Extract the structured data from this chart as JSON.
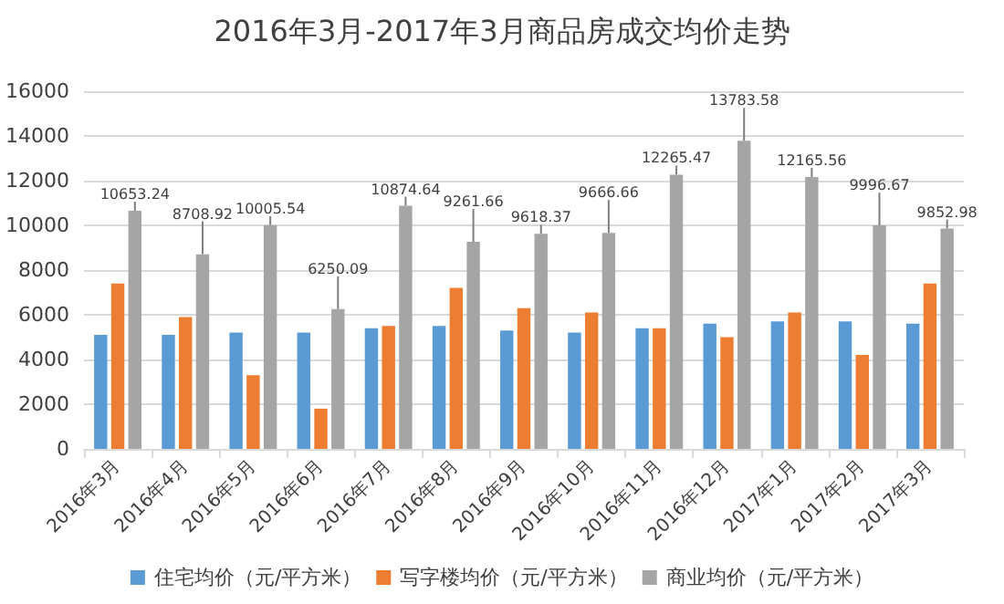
{
  "chart_data": {
    "type": "bar",
    "title": "2016年3月-2017年3月商品房成交均价走势",
    "categories": [
      "2016年3月",
      "2016年4月",
      "2016年5月",
      "2016年6月",
      "2016年7月",
      "2016年8月",
      "2016年9月",
      "2016年10月",
      "2016年11月",
      "2016年12月",
      "2017年1月",
      "2017年2月",
      "2017年3月"
    ],
    "series": [
      {
        "name": "住宅均价（元/平方米）",
        "color": "#5b9bd5",
        "values": [
          5100,
          5100,
          5200,
          5200,
          5400,
          5500,
          5300,
          5200,
          5400,
          5600,
          5700,
          5700,
          5600
        ]
      },
      {
        "name": "写字楼均价（元/平方米）",
        "color": "#ed7d31",
        "values": [
          7400,
          5900,
          3300,
          1800,
          5500,
          7200,
          6300,
          6100,
          5400,
          5000,
          6100,
          4200,
          7400
        ]
      },
      {
        "name": "商业均价（元/平方米）",
        "color": "#a5a5a5",
        "values": [
          10653.24,
          8708.92,
          10005.54,
          6250.09,
          10874.64,
          9261.66,
          9618.37,
          9666.66,
          12265.47,
          13783.58,
          12165.56,
          9996.67,
          9852.98
        ],
        "value_labels": [
          "10653.24",
          "8708.92",
          "10005.54",
          "6250.09",
          "10874.64",
          "9261.66",
          "9618.37",
          "9666.66",
          "12265.47",
          "13783.58",
          "12165.56",
          "9996.67",
          "9852.98"
        ]
      }
    ],
    "ylim": [
      0,
      16000
    ],
    "yticks": [
      0,
      2000,
      4000,
      6000,
      8000,
      10000,
      12000,
      14000,
      16000
    ],
    "grid": "y",
    "legend": "bottom"
  }
}
